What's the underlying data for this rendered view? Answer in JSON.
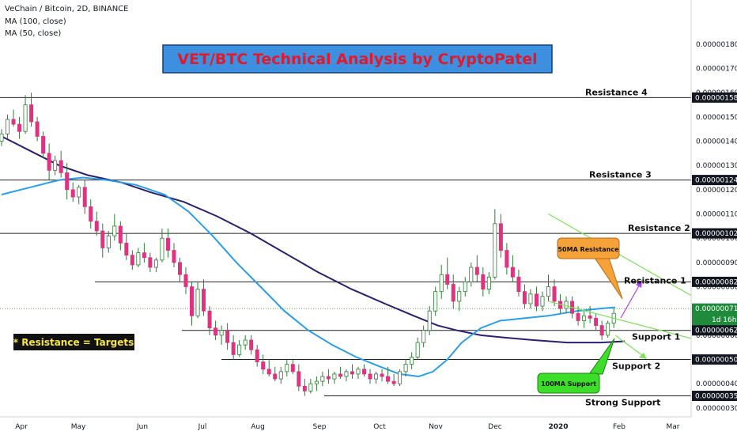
{
  "header": {
    "symbol_line": "VeChain / Bitcoin, 2D, BINANCE",
    "indicator_1": "MA (100, close)",
    "indicator_2": "MA (50, close)"
  },
  "banner": {
    "title": "VET/BTC Technical Analysis by CryptoPatel"
  },
  "note": {
    "text": "* Resistance = Targets"
  },
  "callouts": {
    "ma50": "50MA Resistance",
    "ma100": "100MA Support"
  },
  "colors": {
    "up_candle": "#ffffff",
    "down_candle": "#e0327e",
    "candle_outline": "#2e7d32",
    "ma100": "#2b1f6e",
    "ma50": "#2a9ee6",
    "trendline": "#7ee05a",
    "banner_bg": "#3d8fe0",
    "banner_text": "#e5172b",
    "note_bg": "#111111",
    "note_text": "#f5e642",
    "callout_orange": "#f5a23a",
    "callout_green": "#3dde2a",
    "arrow_purple": "#b043e8"
  },
  "chart_data": {
    "type": "candlestick",
    "title": "VET/BTC Technical Analysis by CryptoPatel",
    "symbol": "VeChain / Bitcoin",
    "interval": "2D",
    "exchange": "BINANCE",
    "x_labels": [
      "Apr",
      "May",
      "Jun",
      "Jul",
      "Aug",
      "Sep",
      "Oct",
      "Nov",
      "Dec",
      "2020",
      "Feb",
      "Mar"
    ],
    "y_axis": {
      "ticks": [
        "0.00000030",
        "0.00000040",
        "0.00000050",
        "0.00000060",
        "0.00000070",
        "0.00000080",
        "0.00000090",
        "0.00000100",
        "0.00000110",
        "0.00000120",
        "0.00000130",
        "0.00000140",
        "0.00000150",
        "0.00000160",
        "0.00000170",
        "0.00000180"
      ],
      "ylim": [
        2.8e-07,
        1.93e-06
      ]
    },
    "price_badges": [
      {
        "value": "0.00000158",
        "style": "dark"
      },
      {
        "value": "0.00000124",
        "style": "dark"
      },
      {
        "value": "0.00000102",
        "style": "dark"
      },
      {
        "value": "0.00000082",
        "style": "dark"
      },
      {
        "value": "0.00000071",
        "style": "green",
        "sub": "1d 16h"
      },
      {
        "value": "0.00000062",
        "style": "dark"
      },
      {
        "value": "0.00000050",
        "style": "dark"
      },
      {
        "value": "0.00000035",
        "style": "dark"
      }
    ],
    "levels": [
      {
        "label": "Resistance 4",
        "value": 1.58e-06
      },
      {
        "label": "Resistance 3",
        "value": 1.24e-06
      },
      {
        "label": "Resistance 2",
        "value": 1.02e-06
      },
      {
        "label": "Resistance 1",
        "value": 8.2e-07
      },
      {
        "label": "Support 1",
        "value": 6.2e-07
      },
      {
        "label": "Support 2",
        "value": 5e-07
      },
      {
        "label": "Strong Support",
        "value": 3.5e-07
      }
    ],
    "last_price": 7.1e-07,
    "series": [
      {
        "name": "MA (100, close)",
        "points": [
          [
            0,
            1.42e-06
          ],
          [
            12,
            1.36e-06
          ],
          [
            24,
            1.3e-06
          ],
          [
            36,
            1.26e-06
          ],
          [
            50,
            1.23e-06
          ],
          [
            62,
            1.19e-06
          ],
          [
            76,
            1.15e-06
          ],
          [
            90,
            1.09e-06
          ],
          [
            104,
            1.02e-06
          ],
          [
            118,
            9.4e-07
          ],
          [
            132,
            8.6e-07
          ],
          [
            146,
            7.9e-07
          ],
          [
            160,
            7.3e-07
          ],
          [
            172,
            6.8e-07
          ],
          [
            182,
            6.4e-07
          ],
          [
            190,
            6.2e-07
          ],
          [
            200,
            6e-07
          ],
          [
            210,
            5.9e-07
          ],
          [
            222,
            5.8e-07
          ],
          [
            236,
            5.7e-07
          ],
          [
            250,
            5.7e-07
          ],
          [
            260,
            5.75e-07
          ]
        ]
      },
      {
        "name": "MA (50, close)",
        "points": [
          [
            0,
            1.18e-06
          ],
          [
            12,
            1.21e-06
          ],
          [
            24,
            1.24e-06
          ],
          [
            34,
            1.25e-06
          ],
          [
            44,
            1.24e-06
          ],
          [
            56,
            1.22e-06
          ],
          [
            68,
            1.18e-06
          ],
          [
            78,
            1.11e-06
          ],
          [
            88,
            1.01e-06
          ],
          [
            98,
            9e-07
          ],
          [
            108,
            8e-07
          ],
          [
            118,
            7e-07
          ],
          [
            128,
            6.2e-07
          ],
          [
            138,
            5.6e-07
          ],
          [
            148,
            5.1e-07
          ],
          [
            158,
            4.7e-07
          ],
          [
            166,
            4.4e-07
          ],
          [
            174,
            4.3e-07
          ],
          [
            180,
            4.5e-07
          ],
          [
            186,
            5e-07
          ],
          [
            192,
            5.7e-07
          ],
          [
            200,
            6.3e-07
          ],
          [
            208,
            6.6e-07
          ],
          [
            218,
            6.7e-07
          ],
          [
            228,
            6.8e-07
          ],
          [
            240,
            7e-07
          ],
          [
            250,
            7.1e-07
          ],
          [
            256,
            7.15e-07
          ]
        ]
      }
    ],
    "trendlines": [
      {
        "from": [
          1.1e-06,
          1.1e-06
        ],
        "note": "descending upper",
        "x": [
          184,
          244
        ],
        "y": [
          1.1e-06,
          6.8e-07
        ]
      },
      {
        "note": "descending lower",
        "x": [
          184,
          250
        ],
        "y": [
          7.4e-07,
          5.3e-07
        ]
      },
      {
        "note": "ascending",
        "x": [
          240,
          252
        ],
        "y": [
          5.8e-07,
          6.6e-07
        ]
      }
    ],
    "candles": [
      [
        0,
        140,
        145,
        138,
        143
      ],
      [
        2,
        143,
        151,
        141,
        149
      ],
      [
        4,
        149,
        153,
        146,
        147
      ],
      [
        6,
        147,
        150,
        141,
        144
      ],
      [
        8,
        144,
        159,
        143,
        155
      ],
      [
        10,
        155,
        160,
        146,
        148
      ],
      [
        12,
        148,
        150,
        140,
        142
      ],
      [
        14,
        142,
        144,
        133,
        135
      ],
      [
        16,
        135,
        139,
        124,
        128
      ],
      [
        18,
        128,
        134,
        126,
        132
      ],
      [
        20,
        132,
        136,
        125,
        127
      ],
      [
        22,
        127,
        131,
        116,
        120
      ],
      [
        24,
        120,
        123,
        115,
        117
      ],
      [
        26,
        117,
        122,
        114,
        121
      ],
      [
        28,
        121,
        124,
        110,
        113
      ],
      [
        30,
        113,
        116,
        104,
        107
      ],
      [
        32,
        107,
        111,
        101,
        103
      ],
      [
        34,
        103,
        106,
        92,
        96
      ],
      [
        36,
        96,
        103,
        94,
        101
      ],
      [
        38,
        101,
        110,
        99,
        105
      ],
      [
        40,
        105,
        107,
        95,
        98
      ],
      [
        42,
        98,
        102,
        91,
        93
      ],
      [
        44,
        93,
        95,
        87,
        89
      ],
      [
        46,
        89,
        96,
        88,
        94
      ],
      [
        48,
        94,
        98,
        90,
        92
      ],
      [
        50,
        92,
        94,
        86,
        88
      ],
      [
        52,
        88,
        92,
        86,
        91
      ],
      [
        54,
        91,
        104,
        90,
        100
      ],
      [
        56,
        100,
        104,
        92,
        95
      ],
      [
        58,
        95,
        98,
        88,
        90
      ],
      [
        60,
        90,
        92,
        82,
        85
      ],
      [
        62,
        85,
        88,
        77,
        80
      ],
      [
        64,
        80,
        82,
        64,
        68
      ],
      [
        66,
        68,
        82,
        67,
        79
      ],
      [
        68,
        79,
        83,
        68,
        70
      ],
      [
        70,
        70,
        72,
        60,
        63
      ],
      [
        72,
        63,
        66,
        58,
        60
      ],
      [
        74,
        60,
        64,
        56,
        62
      ],
      [
        76,
        62,
        65,
        54,
        57
      ],
      [
        78,
        57,
        60,
        50,
        52
      ],
      [
        80,
        52,
        58,
        51,
        56
      ],
      [
        82,
        56,
        60,
        54,
        58
      ],
      [
        84,
        58,
        60,
        52,
        54
      ],
      [
        86,
        54,
        56,
        47,
        49
      ],
      [
        88,
        49,
        52,
        44,
        46
      ],
      [
        90,
        46,
        50,
        43,
        44
      ],
      [
        92,
        44,
        47,
        41,
        42
      ],
      [
        94,
        42,
        47,
        40,
        45
      ],
      [
        96,
        45,
        50,
        43,
        48
      ],
      [
        98,
        48,
        50,
        44,
        45
      ],
      [
        100,
        45,
        48,
        37,
        39
      ],
      [
        102,
        39,
        42,
        35,
        37
      ],
      [
        104,
        37,
        42,
        36,
        40
      ],
      [
        106,
        40,
        43,
        37,
        41
      ],
      [
        108,
        41,
        45,
        39,
        43
      ],
      [
        110,
        43,
        46,
        40,
        42
      ],
      [
        112,
        42,
        45,
        40,
        44
      ],
      [
        114,
        44,
        47,
        42,
        43
      ],
      [
        116,
        43,
        46,
        41,
        45
      ],
      [
        118,
        45,
        48,
        42,
        44
      ],
      [
        120,
        44,
        47,
        42,
        46
      ],
      [
        122,
        46,
        48,
        43,
        44
      ],
      [
        124,
        44,
        46,
        40,
        42
      ],
      [
        126,
        42,
        45,
        40,
        44
      ],
      [
        128,
        44,
        46,
        41,
        43
      ],
      [
        130,
        43,
        47,
        40,
        41
      ],
      [
        132,
        41,
        44,
        39,
        40
      ],
      [
        134,
        40,
        46,
        39,
        45
      ],
      [
        136,
        45,
        50,
        43,
        48
      ],
      [
        138,
        48,
        53,
        46,
        51
      ],
      [
        140,
        51,
        59,
        50,
        57
      ],
      [
        142,
        57,
        64,
        55,
        62
      ],
      [
        144,
        62,
        72,
        60,
        70
      ],
      [
        146,
        70,
        80,
        68,
        78
      ],
      [
        148,
        78,
        89,
        75,
        85
      ],
      [
        150,
        85,
        92,
        79,
        81
      ],
      [
        152,
        81,
        85,
        71,
        74
      ],
      [
        154,
        74,
        80,
        70,
        78
      ],
      [
        156,
        78,
        84,
        76,
        82
      ],
      [
        158,
        82,
        90,
        80,
        88
      ],
      [
        160,
        88,
        93,
        82,
        85
      ],
      [
        162,
        85,
        88,
        76,
        79
      ],
      [
        164,
        79,
        86,
        77,
        84
      ],
      [
        166,
        84,
        112,
        83,
        106
      ],
      [
        168,
        106,
        110,
        92,
        95
      ],
      [
        170,
        95,
        98,
        85,
        88
      ],
      [
        172,
        88,
        93,
        82,
        84
      ],
      [
        174,
        84,
        87,
        76,
        78
      ],
      [
        176,
        78,
        81,
        71,
        73
      ],
      [
        178,
        73,
        79,
        71,
        77
      ],
      [
        180,
        77,
        80,
        70,
        72
      ],
      [
        182,
        72,
        78,
        70,
        76
      ],
      [
        184,
        76,
        85,
        74,
        80
      ],
      [
        186,
        80,
        83,
        72,
        74
      ],
      [
        188,
        74,
        77,
        69,
        71
      ],
      [
        190,
        71,
        76,
        69,
        74
      ],
      [
        192,
        74,
        76,
        67,
        69
      ],
      [
        194,
        69,
        72,
        64,
        66
      ],
      [
        196,
        66,
        70,
        63,
        68
      ],
      [
        198,
        68,
        72,
        65,
        67
      ],
      [
        200,
        67,
        69,
        62,
        64
      ],
      [
        202,
        64,
        66,
        58,
        60
      ],
      [
        204,
        60,
        66,
        59,
        65
      ],
      [
        206,
        65,
        71,
        63,
        69
      ]
    ]
  }
}
